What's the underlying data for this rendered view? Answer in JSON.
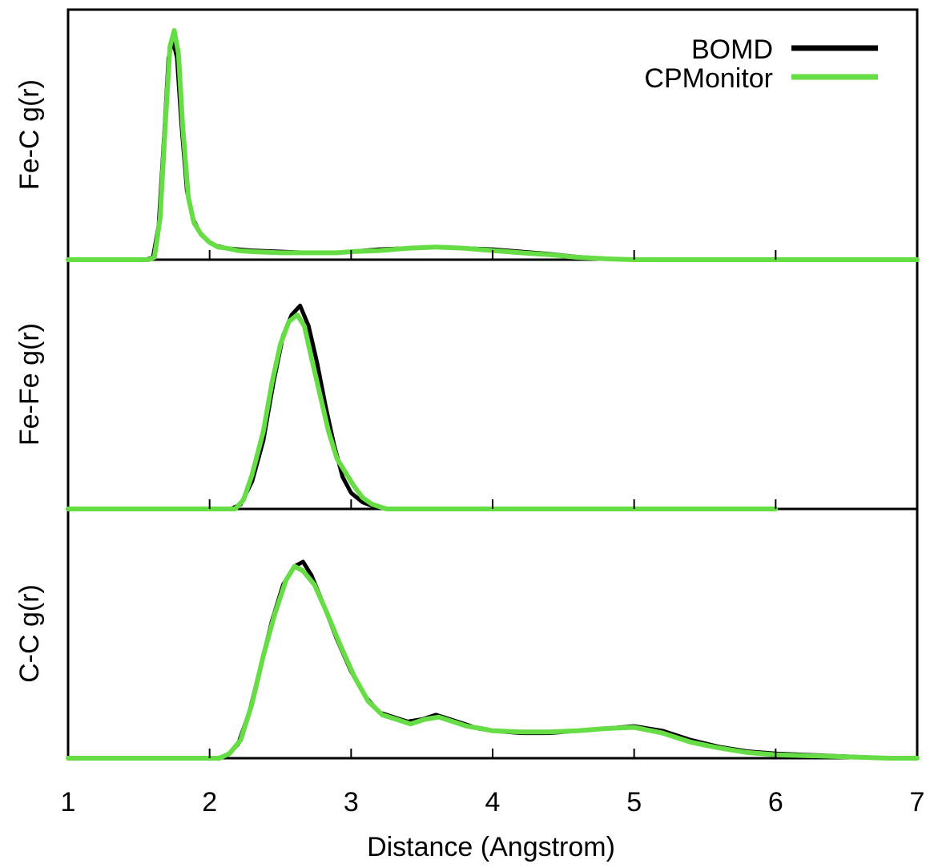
{
  "chart_data": {
    "type": "line",
    "xlabel": "Distance (Angstrom)",
    "xlim": [
      1,
      7
    ],
    "xticks": [
      "1",
      "2",
      "3",
      "4",
      "5",
      "6",
      "7"
    ],
    "legend": {
      "placement": "top-right",
      "entries": [
        {
          "name": "BOMD",
          "color": "#000000"
        },
        {
          "name": "CPMonitor",
          "color": "#66dd44"
        }
      ]
    },
    "panels": [
      {
        "ylabel": "Fe-C g(r)",
        "ylim": [
          0,
          1
        ],
        "series": [
          {
            "name": "BOMD",
            "points": [
              [
                1.0,
                0
              ],
              [
                1.55,
                0
              ],
              [
                1.6,
                0.01
              ],
              [
                1.64,
                0.15
              ],
              [
                1.68,
                0.55
              ],
              [
                1.71,
                0.88
              ],
              [
                1.74,
                0.96
              ],
              [
                1.77,
                0.88
              ],
              [
                1.8,
                0.6
              ],
              [
                1.84,
                0.3
              ],
              [
                1.88,
                0.18
              ],
              [
                1.93,
                0.12
              ],
              [
                1.99,
                0.08
              ],
              [
                2.05,
                0.06
              ],
              [
                2.12,
                0.05
              ],
              [
                2.2,
                0.045
              ],
              [
                2.3,
                0.04
              ],
              [
                2.5,
                0.035
              ],
              [
                2.7,
                0.03
              ],
              [
                2.9,
                0.03
              ],
              [
                3.0,
                0.035
              ],
              [
                3.2,
                0.045
              ],
              [
                3.4,
                0.05
              ],
              [
                3.6,
                0.055
              ],
              [
                3.8,
                0.05
              ],
              [
                4.0,
                0.045
              ],
              [
                4.2,
                0.035
              ],
              [
                4.4,
                0.025
              ],
              [
                4.6,
                0.012
              ],
              [
                4.8,
                0.005
              ],
              [
                5.0,
                0.0
              ],
              [
                7.0,
                0
              ]
            ]
          },
          {
            "name": "CPMonitor",
            "points": [
              [
                1.0,
                0
              ],
              [
                1.57,
                0
              ],
              [
                1.61,
                0.01
              ],
              [
                1.65,
                0.18
              ],
              [
                1.69,
                0.62
              ],
              [
                1.72,
                0.93
              ],
              [
                1.75,
                1.0
              ],
              [
                1.78,
                0.9
              ],
              [
                1.81,
                0.58
              ],
              [
                1.85,
                0.27
              ],
              [
                1.89,
                0.16
              ],
              [
                1.94,
                0.11
              ],
              [
                2.0,
                0.075
              ],
              [
                2.06,
                0.055
              ],
              [
                2.12,
                0.05
              ],
              [
                2.2,
                0.04
              ],
              [
                2.3,
                0.035
              ],
              [
                2.5,
                0.03
              ],
              [
                2.7,
                0.03
              ],
              [
                2.9,
                0.03
              ],
              [
                3.0,
                0.035
              ],
              [
                3.2,
                0.04
              ],
              [
                3.4,
                0.05
              ],
              [
                3.6,
                0.055
              ],
              [
                3.8,
                0.05
              ],
              [
                4.0,
                0.04
              ],
              [
                4.2,
                0.03
              ],
              [
                4.4,
                0.022
              ],
              [
                4.6,
                0.01
              ],
              [
                4.8,
                0.004
              ],
              [
                5.0,
                0.0
              ],
              [
                7.0,
                0
              ]
            ]
          }
        ]
      },
      {
        "ylabel": "Fe-Fe g(r)",
        "ylim": [
          0,
          1
        ],
        "series": [
          {
            "name": "BOMD",
            "points": [
              [
                1.0,
                0
              ],
              [
                2.15,
                0
              ],
              [
                2.22,
                0.02
              ],
              [
                2.3,
                0.12
              ],
              [
                2.38,
                0.3
              ],
              [
                2.45,
                0.55
              ],
              [
                2.52,
                0.76
              ],
              [
                2.58,
                0.85
              ],
              [
                2.64,
                0.89
              ],
              [
                2.7,
                0.8
              ],
              [
                2.76,
                0.64
              ],
              [
                2.82,
                0.45
              ],
              [
                2.88,
                0.28
              ],
              [
                2.94,
                0.14
              ],
              [
                3.0,
                0.07
              ],
              [
                3.08,
                0.03
              ],
              [
                3.16,
                0.01
              ],
              [
                3.25,
                0
              ],
              [
                6.0,
                0
              ]
            ]
          },
          {
            "name": "CPMonitor",
            "points": [
              [
                1.0,
                0
              ],
              [
                2.18,
                0
              ],
              [
                2.24,
                0.04
              ],
              [
                2.3,
                0.15
              ],
              [
                2.38,
                0.34
              ],
              [
                2.44,
                0.55
              ],
              [
                2.5,
                0.72
              ],
              [
                2.56,
                0.82
              ],
              [
                2.62,
                0.85
              ],
              [
                2.67,
                0.8
              ],
              [
                2.72,
                0.66
              ],
              [
                2.78,
                0.5
              ],
              [
                2.84,
                0.34
              ],
              [
                2.9,
                0.22
              ],
              [
                2.96,
                0.16
              ],
              [
                3.02,
                0.1
              ],
              [
                3.08,
                0.05
              ],
              [
                3.15,
                0.02
              ],
              [
                3.25,
                0
              ],
              [
                6.0,
                0
              ]
            ]
          }
        ]
      },
      {
        "ylabel": "C-C g(r)",
        "ylim": [
          0,
          1
        ],
        "series": [
          {
            "name": "BOMD",
            "points": [
              [
                1.0,
                0
              ],
              [
                2.05,
                0
              ],
              [
                2.12,
                0.01
              ],
              [
                2.2,
                0.06
              ],
              [
                2.28,
                0.2
              ],
              [
                2.36,
                0.4
              ],
              [
                2.44,
                0.6
              ],
              [
                2.52,
                0.76
              ],
              [
                2.6,
                0.84
              ],
              [
                2.66,
                0.86
              ],
              [
                2.72,
                0.8
              ],
              [
                2.8,
                0.68
              ],
              [
                2.9,
                0.52
              ],
              [
                3.0,
                0.38
              ],
              [
                3.1,
                0.27
              ],
              [
                3.2,
                0.2
              ],
              [
                3.3,
                0.18
              ],
              [
                3.4,
                0.16
              ],
              [
                3.5,
                0.17
              ],
              [
                3.6,
                0.19
              ],
              [
                3.7,
                0.17
              ],
              [
                3.8,
                0.15
              ],
              [
                3.9,
                0.13
              ],
              [
                4.0,
                0.12
              ],
              [
                4.2,
                0.11
              ],
              [
                4.4,
                0.11
              ],
              [
                4.6,
                0.12
              ],
              [
                4.8,
                0.13
              ],
              [
                5.0,
                0.14
              ],
              [
                5.2,
                0.12
              ],
              [
                5.4,
                0.08
              ],
              [
                5.6,
                0.05
              ],
              [
                5.8,
                0.03
              ],
              [
                6.0,
                0.02
              ],
              [
                6.4,
                0.01
              ],
              [
                6.8,
                0.0
              ],
              [
                7.0,
                0
              ]
            ]
          },
          {
            "name": "CPMonitor",
            "points": [
              [
                1.0,
                0
              ],
              [
                2.07,
                0
              ],
              [
                2.14,
                0.02
              ],
              [
                2.22,
                0.08
              ],
              [
                2.3,
                0.24
              ],
              [
                2.38,
                0.45
              ],
              [
                2.46,
                0.63
              ],
              [
                2.54,
                0.78
              ],
              [
                2.6,
                0.84
              ],
              [
                2.66,
                0.82
              ],
              [
                2.74,
                0.76
              ],
              [
                2.82,
                0.65
              ],
              [
                2.92,
                0.5
              ],
              [
                3.02,
                0.36
              ],
              [
                3.12,
                0.25
              ],
              [
                3.22,
                0.19
              ],
              [
                3.32,
                0.17
              ],
              [
                3.42,
                0.15
              ],
              [
                3.52,
                0.17
              ],
              [
                3.62,
                0.18
              ],
              [
                3.72,
                0.16
              ],
              [
                3.82,
                0.14
              ],
              [
                3.92,
                0.13
              ],
              [
                4.0,
                0.12
              ],
              [
                4.2,
                0.115
              ],
              [
                4.4,
                0.115
              ],
              [
                4.6,
                0.12
              ],
              [
                4.8,
                0.13
              ],
              [
                5.0,
                0.135
              ],
              [
                5.2,
                0.11
              ],
              [
                5.4,
                0.07
              ],
              [
                5.6,
                0.045
              ],
              [
                5.8,
                0.025
              ],
              [
                6.0,
                0.015
              ],
              [
                6.4,
                0.008
              ],
              [
                6.8,
                0.0
              ],
              [
                7.0,
                0
              ]
            ]
          }
        ]
      }
    ]
  }
}
